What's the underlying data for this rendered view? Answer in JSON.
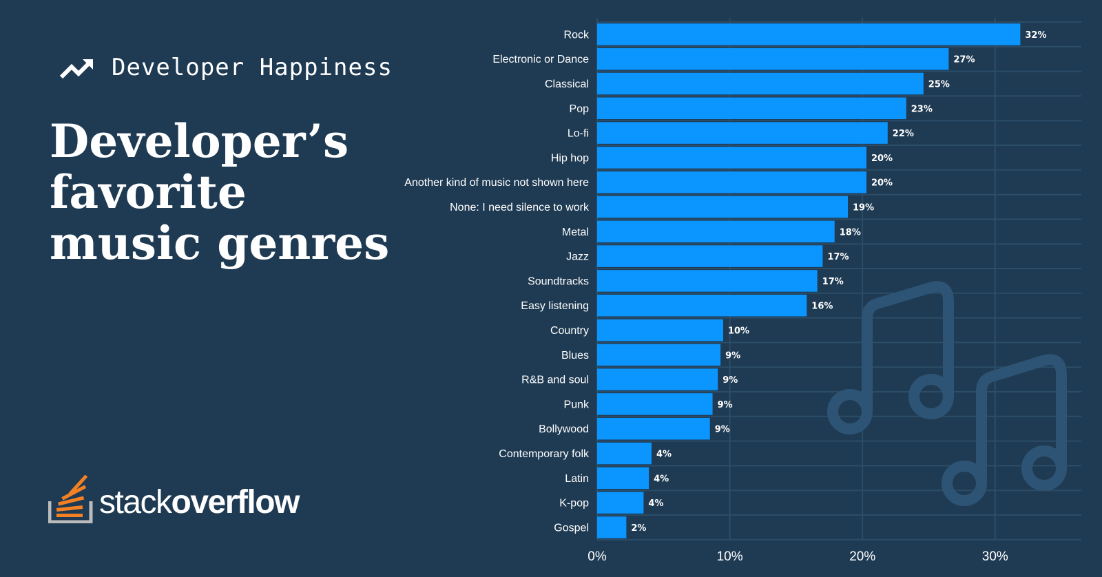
{
  "header": {
    "topic": "Developer Happiness",
    "topic_icon": "trending-up-icon",
    "title_lines": [
      "Developer’s",
      "favorite",
      "music genres"
    ]
  },
  "brand": {
    "light": "stack",
    "bold": "overflow",
    "logo_icon": "stack-overflow-logo"
  },
  "colors": {
    "background": "#1f3b53",
    "bar": "#0a95ff",
    "grid": "#2c4d68",
    "note": "#2e5475",
    "logo_orange": "#f48024",
    "logo_gray": "#bcbbbb"
  },
  "decor_icon": "music-notes-icon",
  "chart_data": {
    "type": "bar",
    "orientation": "horizontal",
    "categories": [
      "Rock",
      "Electronic or Dance",
      "Classical",
      "Pop",
      "Lo-fi",
      "Hip hop",
      "Another kind of music not shown here",
      "None: I need silence to work",
      "Metal",
      "Jazz",
      "Soundtracks",
      "Easy listening",
      "Country",
      "Blues",
      "R&B and soul",
      "Punk",
      "Bollywood",
      "Contemporary folk",
      "Latin",
      "K-pop",
      "Gospel"
    ],
    "values": [
      31.9,
      26.5,
      24.6,
      23.3,
      21.9,
      20.3,
      20.3,
      18.9,
      17.9,
      17.0,
      16.6,
      15.8,
      9.5,
      9.3,
      9.1,
      8.7,
      8.5,
      4.1,
      3.9,
      3.5,
      2.2
    ],
    "value_labels": [
      "32%",
      "27%",
      "25%",
      "23%",
      "22%",
      "20%",
      "20%",
      "19%",
      "18%",
      "17%",
      "17%",
      "16%",
      "10%",
      "9%",
      "9%",
      "9%",
      "9%",
      "4%",
      "4%",
      "4%",
      "2%"
    ],
    "x_ticks": [
      0,
      10,
      20,
      30
    ],
    "x_tick_labels": [
      "0%",
      "10%",
      "20%",
      "30%"
    ],
    "xlim": [
      0,
      36.5
    ],
    "grid": true,
    "title": "",
    "xlabel": "",
    "ylabel": ""
  }
}
